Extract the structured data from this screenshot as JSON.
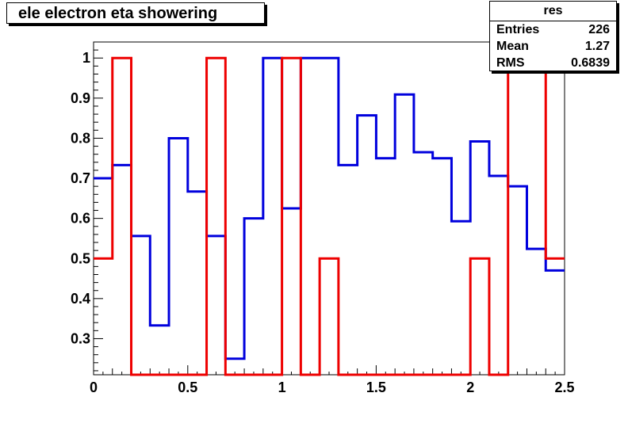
{
  "title": "ele electron eta showering",
  "stats": {
    "name": "res",
    "rows": [
      {
        "label": "Entries",
        "value": "226"
      },
      {
        "label": "Mean",
        "value": "1.27"
      },
      {
        "label": "RMS",
        "value": "0.6839"
      }
    ]
  },
  "chart_data": {
    "type": "line",
    "step": true,
    "title": "ele electron eta showering",
    "xlabel": "",
    "ylabel": "",
    "xlim": [
      0,
      2.5
    ],
    "ylim": [
      0.21,
      1.04
    ],
    "grid": false,
    "x_ticks": [
      0,
      0.5,
      1,
      1.5,
      2,
      2.5
    ],
    "x_tick_labels": [
      "0",
      "0.5",
      "1",
      "1.5",
      "2",
      "2.5"
    ],
    "y_ticks": [
      0.3,
      0.4,
      0.5,
      0.6,
      0.7,
      0.8,
      0.9,
      1
    ],
    "y_tick_labels": [
      "0.3",
      "0.4",
      "0.5",
      "0.6",
      "0.7",
      "0.8",
      "0.9",
      "1"
    ],
    "bin_edges": [
      0,
      0.1,
      0.2,
      0.3,
      0.4,
      0.5,
      0.6,
      0.7,
      0.8,
      0.9,
      1.0,
      1.1,
      1.2,
      1.3,
      1.4,
      1.5,
      1.6,
      1.7,
      1.8,
      1.9,
      2.0,
      2.1,
      2.2,
      2.3,
      2.4,
      2.5
    ],
    "series": [
      {
        "color": "#0000dd",
        "values": [
          0.7,
          0.733,
          0.556,
          0.333,
          0.8,
          0.667,
          0.556,
          0.25,
          0.6,
          1.0,
          0.625,
          1.0,
          1.0,
          0.733,
          0.857,
          0.75,
          0.909,
          0.765,
          0.75,
          0.593,
          0.792,
          0.706,
          0.68,
          0.524,
          0.47
        ]
      },
      {
        "color": "#ee0000",
        "values": [
          0.5,
          1.0,
          0.21,
          0.21,
          0.21,
          0.21,
          1.0,
          0.21,
          0.21,
          0.21,
          1.0,
          0.21,
          0.5,
          0.21,
          0.21,
          0.21,
          0.21,
          0.21,
          0.21,
          0.21,
          0.5,
          0.21,
          1.0,
          1.0,
          0.5
        ]
      }
    ]
  }
}
